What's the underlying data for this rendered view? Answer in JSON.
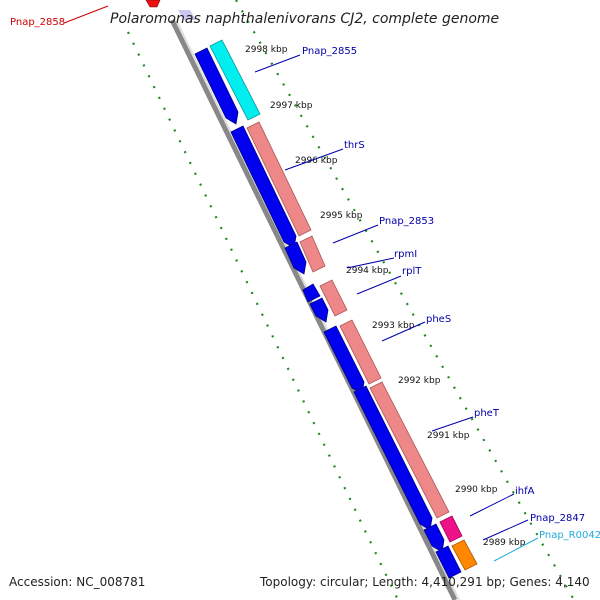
{
  "title": "Polaromonas naphthalenivorans CJ2, complete genome",
  "footer": {
    "accession": "Accession: NC_008781",
    "stats": "Topology: circular; Length: 4,410,291 bp; Genes: 4,140"
  },
  "scale_ticks": [
    {
      "label": "2998 kbp"
    },
    {
      "label": "2997 kbp"
    },
    {
      "label": "2996 kbp"
    },
    {
      "label": "2995 kbp"
    },
    {
      "label": "2994 kbp"
    },
    {
      "label": "2993 kbp"
    },
    {
      "label": "2992 kbp"
    },
    {
      "label": "2991 kbp"
    },
    {
      "label": "2990 kbp"
    },
    {
      "label": "2989 kbp"
    }
  ],
  "gene_labels": [
    {
      "label": "Pnap_2858",
      "color": "#cc0000"
    },
    {
      "label": "Pnap_2855",
      "color": "#0000aa"
    },
    {
      "label": "thrS",
      "color": "#0000aa"
    },
    {
      "label": "Pnap_2853",
      "color": "#0000aa"
    },
    {
      "label": "rpmI",
      "color": "#0000aa"
    },
    {
      "label": "rplT",
      "color": "#0000aa"
    },
    {
      "label": "pheS",
      "color": "#0000aa"
    },
    {
      "label": "pheT",
      "color": "#0000aa"
    },
    {
      "label": "ihfA",
      "color": "#0000aa"
    },
    {
      "label": "Pnap_2847",
      "color": "#0000aa"
    },
    {
      "label": "Pnap_R0042",
      "color": "#22aadd"
    }
  ],
  "colors": {
    "cds": "#0000ee",
    "gene": "#ee8888",
    "gene_cyan": "#00eeee",
    "rna_pink": "#ee1188",
    "rna_orange": "#ff8800",
    "backbone": "#888888",
    "dotted_ring": "#228822",
    "label_blue": "#0000aa",
    "label_red": "#cc0000",
    "label_cyan": "#22aadd"
  }
}
